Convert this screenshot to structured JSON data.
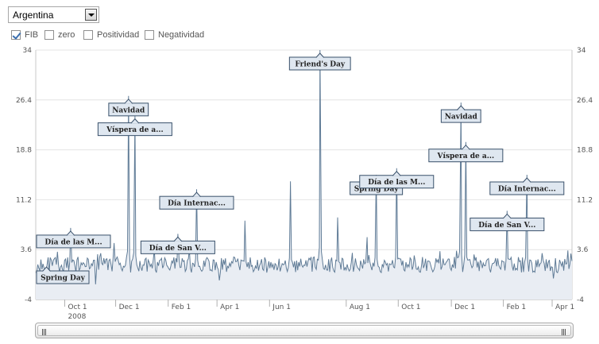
{
  "country_selector": {
    "value": "Argentina"
  },
  "toggles": [
    {
      "label": "FIB",
      "checked": true
    },
    {
      "label": "zero",
      "checked": false
    },
    {
      "label": "Positividad",
      "checked": false
    },
    {
      "label": "Negatividad",
      "checked": false
    }
  ],
  "colors": {
    "line": "#5f7b96",
    "area": "#e9edf3",
    "grid": "#e4e4e4",
    "flag_bg": "#dfe7f0",
    "flag_border": "#39506a"
  },
  "chart_data": {
    "type": "area",
    "title": "",
    "xlabel": "",
    "ylabel": "",
    "ylim": [
      -4,
      34
    ],
    "yticks": [
      -4,
      3.6,
      11.2,
      18.8,
      26.4,
      34
    ],
    "ytick_labels": [
      "-4",
      "3.6",
      "11.2",
      "18.8",
      "26.4",
      "34"
    ],
    "x_range": [
      0,
      100
    ],
    "xticks": [
      {
        "x": 5.4,
        "label": "Oct 1",
        "sub": "2008"
      },
      {
        "x": 14.9,
        "label": "Dec 1"
      },
      {
        "x": 24.7,
        "label": "Feb 1"
      },
      {
        "x": 33.8,
        "label": "Apr 1"
      },
      {
        "x": 43.6,
        "label": "Jun 1"
      },
      {
        "x": 57.9,
        "label": "Aug 1"
      },
      {
        "x": 67.6,
        "label": "Oct 1"
      },
      {
        "x": 77.5,
        "label": "Dec 1"
      },
      {
        "x": 87.2,
        "label": "Feb 1"
      },
      {
        "x": 96.3,
        "label": "Apr 1"
      }
    ],
    "baseline": 1.3,
    "noise": 1.1,
    "spikes": [
      {
        "x": 6.5,
        "y": 6.9
      },
      {
        "x": 14.6,
        "y": 4.6
      },
      {
        "x": 17.3,
        "y": 27.0
      },
      {
        "x": 18.5,
        "y": 24.0
      },
      {
        "x": 26.5,
        "y": 6.0
      },
      {
        "x": 30.0,
        "y": 12.8
      },
      {
        "x": 39.0,
        "y": 8.0
      },
      {
        "x": 47.5,
        "y": 14.0
      },
      {
        "x": 53.0,
        "y": 34.0
      },
      {
        "x": 56.3,
        "y": 8.5
      },
      {
        "x": 61.8,
        "y": 5.5
      },
      {
        "x": 63.5,
        "y": 15.0
      },
      {
        "x": 67.3,
        "y": 16.0
      },
      {
        "x": 79.3,
        "y": 26.0
      },
      {
        "x": 80.2,
        "y": 20.0
      },
      {
        "x": 87.9,
        "y": 9.5
      },
      {
        "x": 91.6,
        "y": 15.0
      },
      {
        "x": 99.8,
        "y": 3.0
      }
    ],
    "annotations": [
      {
        "x": 2.0,
        "label": "Spring Day"
      },
      {
        "x": 6.5,
        "label": "Día de las M..."
      },
      {
        "x": 17.3,
        "label": "Navidad"
      },
      {
        "x": 18.5,
        "label": "Víspera de a..."
      },
      {
        "x": 26.5,
        "label": "Día de San V..."
      },
      {
        "x": 30.0,
        "label": "Día Internac..."
      },
      {
        "x": 53.0,
        "label": "Friend's Day"
      },
      {
        "x": 63.5,
        "label": "Spring Day"
      },
      {
        "x": 67.3,
        "label": "Día de las M..."
      },
      {
        "x": 79.3,
        "label": "Navidad"
      },
      {
        "x": 80.2,
        "label": "Víspera de a..."
      },
      {
        "x": 87.9,
        "label": "Día de San V..."
      },
      {
        "x": 91.6,
        "label": "Día Internac..."
      }
    ]
  }
}
